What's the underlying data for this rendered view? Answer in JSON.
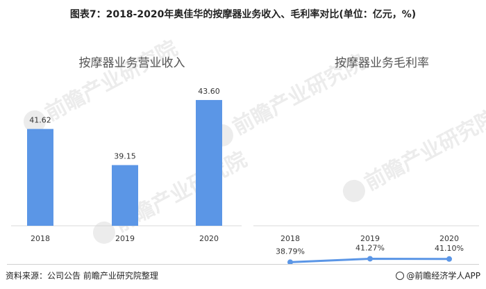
{
  "figure_title": "图表7：2018-2020年奥佳华的按摩器业务收入、毛利率对比(单位：亿元，%)",
  "watermark": "前瞻产业研究院",
  "source": "资料来源：公司公告 前瞻产业研究院整理",
  "brand": "@前瞻经济学人APP",
  "colors": {
    "accent": "#5b96e6",
    "axis": "#d9d9d9",
    "label": "#333333"
  },
  "chart_data": [
    {
      "type": "bar",
      "title": "按摩器业务营业收入",
      "categories": [
        "2018",
        "2019",
        "2020"
      ],
      "values": [
        41.62,
        39.15,
        43.6
      ],
      "value_labels": [
        "41.62",
        "39.15",
        "43.60"
      ],
      "ylim": [
        35,
        44.5
      ],
      "grid": false,
      "color": "#5b96e6"
    },
    {
      "type": "line",
      "title": "按摩器业务毛利率",
      "categories": [
        "2018",
        "2019",
        "2020"
      ],
      "values": [
        38.79,
        41.27,
        41.1
      ],
      "value_labels": [
        "38.79%",
        "41.27%",
        "41.10%"
      ],
      "ylim": [
        0,
        100
      ],
      "grid": false,
      "color": "#5b96e6"
    }
  ]
}
